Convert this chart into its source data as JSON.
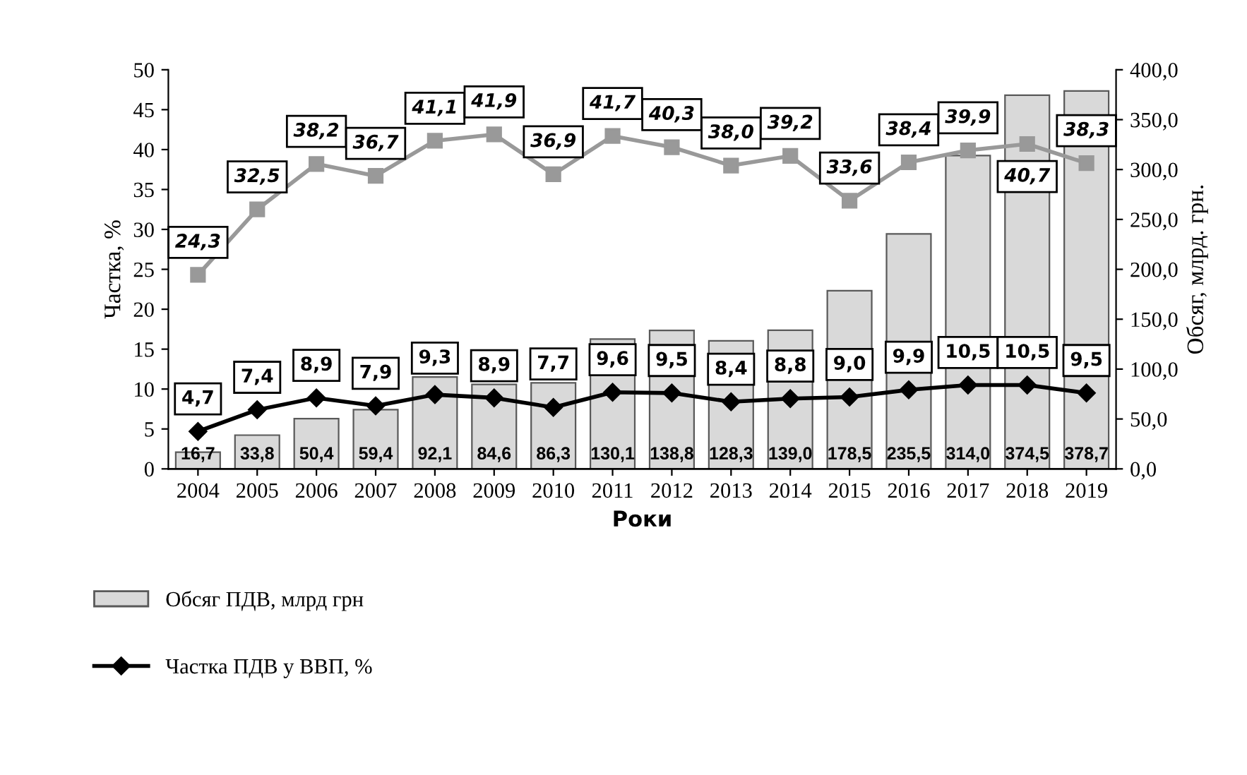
{
  "chart_data": {
    "type": "bar",
    "xlabel": "Роки",
    "ylabel": "Частка, %",
    "y2label": "Обсяг, млрд. грн.",
    "categories": [
      "2004",
      "2005",
      "2006",
      "2007",
      "2008",
      "2009",
      "2010",
      "2011",
      "2012",
      "2013",
      "2014",
      "2015",
      "2016",
      "2017",
      "2018",
      "2019"
    ],
    "series": [
      {
        "name": "Обсяг ПДВ, млрд грн",
        "axis": "y2",
        "color": "#d9d9d9",
        "values": [
          16.7,
          33.8,
          50.4,
          59.4,
          92.1,
          84.6,
          86.3,
          130.1,
          138.8,
          128.3,
          139.0,
          178.5,
          235.5,
          314.0,
          374.5,
          378.7
        ],
        "value_labels": [
          "16,7",
          "33,8",
          "50,4",
          "59,4",
          "92,1",
          "84,6",
          "86,3",
          "130,1",
          "138,8",
          "128,3",
          "139,0",
          "178,5",
          "235,5",
          "314,0",
          "374,5",
          "378,7"
        ]
      },
      {
        "name": "Частка ПДВ у ВВП, %",
        "type": "line",
        "color": "#000000",
        "marker": "diamond",
        "values": [
          4.7,
          7.4,
          8.9,
          7.9,
          9.3,
          8.9,
          7.7,
          9.6,
          9.5,
          8.4,
          8.8,
          9.0,
          9.9,
          10.5,
          10.5,
          9.5
        ],
        "value_labels": [
          "4,7",
          "7,4",
          "8,9",
          "7,9",
          "9,3",
          "8,9",
          "7,7",
          "9,6",
          "9,5",
          "8,4",
          "8,8",
          "9,0",
          "9,9",
          "10,5",
          "10,5",
          "9,5"
        ]
      },
      {
        "type": "line",
        "color": "#999999",
        "marker": "square",
        "values": [
          24.3,
          32.5,
          38.2,
          36.7,
          41.1,
          41.9,
          36.9,
          41.7,
          40.3,
          38.0,
          39.2,
          33.6,
          38.4,
          39.9,
          40.7,
          38.3
        ],
        "value_labels": [
          "24,3",
          "32,5",
          "38,2",
          "36,7",
          "41,1",
          "41,9",
          "36,9",
          "41,7",
          "40,3",
          "38,0",
          "39,2",
          "33,6",
          "38,4",
          "39,9",
          "40,7",
          "38,3"
        ]
      }
    ],
    "ylim": [
      0,
      50
    ],
    "yticks": [
      0,
      5,
      10,
      15,
      20,
      25,
      30,
      35,
      40,
      45,
      50
    ],
    "y2lim": [
      0,
      400
    ],
    "y2ticks": [
      {
        "value": 0,
        "label": "0,0"
      },
      {
        "value": 50,
        "label": "50,0"
      },
      {
        "value": 100,
        "label": "100,0"
      },
      {
        "value": 150,
        "label": "150,0"
      },
      {
        "value": 200,
        "label": "200,0"
      },
      {
        "value": 250,
        "label": "250,0"
      },
      {
        "value": 300,
        "label": "300,0"
      },
      {
        "value": 350,
        "label": "350,0"
      },
      {
        "value": 400,
        "label": "400,0"
      }
    ],
    "legend": "bottom left",
    "grid": false
  }
}
